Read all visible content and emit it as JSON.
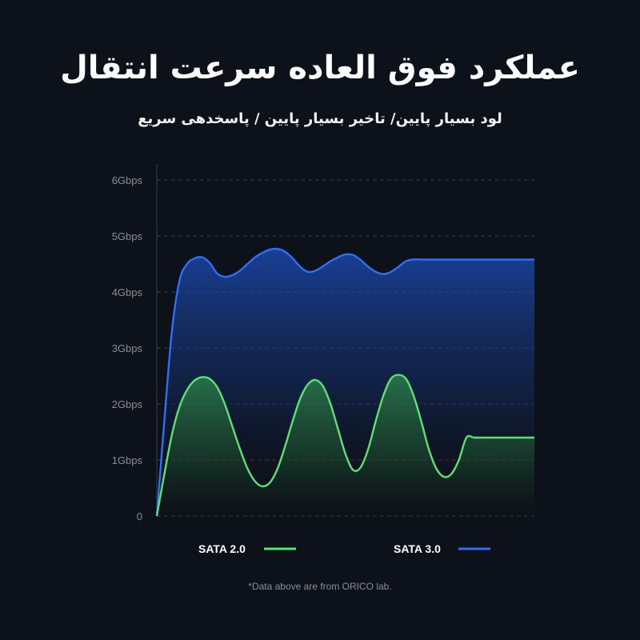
{
  "header": {
    "title": "عملکرد فوق العاده سرعت انتقال",
    "subtitle": "لود بسیار پایین/ تاخیر بسیار پایین / پاسخدهی سریع"
  },
  "chart_data": {
    "type": "area",
    "title": "عملکرد فوق العاده سرعت انتقال",
    "subtitle": "لود بسیار پایین/ تاخیر بسیار پایین / پاسخدهی سریع",
    "xlabel": "",
    "ylabel": "",
    "ylim": [
      0,
      6
    ],
    "yticks": [
      0,
      1,
      2,
      3,
      4,
      5,
      6
    ],
    "ytick_labels": [
      "0",
      "1Gbps",
      "2Gbps",
      "3Gbps",
      "4Gbps",
      "5Gbps",
      "6Gbps"
    ],
    "grid": true,
    "legend": "bottom",
    "x": [
      0,
      0.02,
      0.04,
      0.06,
      0.08,
      0.1,
      0.12,
      0.14,
      0.16,
      0.18,
      0.2,
      0.22,
      0.24,
      0.26,
      0.28,
      0.3,
      0.32,
      0.34,
      0.36,
      0.38,
      0.4,
      0.42,
      0.44,
      0.46,
      0.48,
      0.5,
      0.52,
      0.54,
      0.56,
      0.58,
      0.6,
      0.62,
      0.64,
      0.66,
      0.68,
      0.7,
      0.72,
      0.74,
      0.76,
      0.78,
      0.8,
      0.82,
      0.84,
      0.86,
      0.88,
      0.9,
      0.92,
      0.94,
      0.96,
      0.98,
      1.0
    ],
    "series": [
      {
        "name": "SATA 2.0",
        "color": "#5fe073",
        "values": [
          0.0,
          0.75,
          1.45,
          1.95,
          2.25,
          2.42,
          2.48,
          2.45,
          2.3,
          2.0,
          1.6,
          1.2,
          0.85,
          0.62,
          0.53,
          0.6,
          0.85,
          1.25,
          1.7,
          2.1,
          2.35,
          2.43,
          2.32,
          2.0,
          1.55,
          1.1,
          0.82,
          0.87,
          1.2,
          1.7,
          2.15,
          2.45,
          2.52,
          2.45,
          2.15,
          1.7,
          1.2,
          0.85,
          0.7,
          0.75,
          1.0,
          1.4,
          1.4,
          1.4,
          1.4,
          1.4,
          1.4,
          1.4,
          1.4,
          1.4,
          1.4
        ]
      },
      {
        "name": "SATA 3.0",
        "color": "#2f6ef5",
        "values": [
          0.0,
          1.7,
          3.3,
          4.2,
          4.5,
          4.6,
          4.62,
          4.52,
          4.33,
          4.27,
          4.3,
          4.38,
          4.5,
          4.62,
          4.7,
          4.76,
          4.77,
          4.72,
          4.6,
          4.45,
          4.36,
          4.38,
          4.46,
          4.55,
          4.62,
          4.67,
          4.66,
          4.57,
          4.45,
          4.36,
          4.32,
          4.36,
          4.45,
          4.55,
          4.58,
          4.58,
          4.58,
          4.58,
          4.58,
          4.58,
          4.58,
          4.58,
          4.58,
          4.58,
          4.58,
          4.58,
          4.58,
          4.58,
          4.58,
          4.58,
          4.58
        ]
      }
    ],
    "footnote": "*Data above are from ORICO lab."
  }
}
